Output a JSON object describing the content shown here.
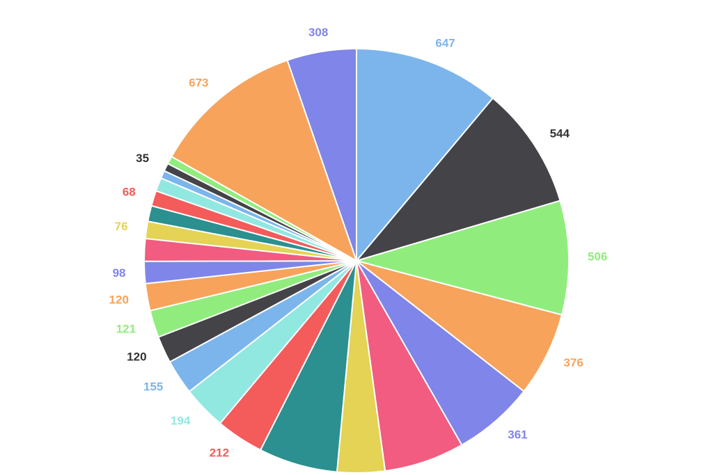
{
  "chart_data": {
    "type": "pie",
    "values": [
      647,
      544,
      506,
      376,
      361,
      356,
      211,
      350,
      212,
      194,
      155,
      120,
      121,
      120,
      98,
      100,
      76,
      70,
      68,
      60,
      35,
      35,
      35,
      673,
      308
    ],
    "value_labels": [
      "647",
      "544",
      "506",
      "376",
      "361",
      null,
      null,
      null,
      "212",
      "194",
      "155",
      "120",
      "121",
      "120",
      "98",
      null,
      "76",
      null,
      "68",
      null,
      null,
      "35",
      null,
      "673",
      "308"
    ],
    "colors": [
      "#7cb5ec",
      "#434348",
      "#90ed7d",
      "#f7a35c",
      "#8085e9",
      "#f15c80",
      "#e4d354",
      "#2b908f",
      "#f45b5b",
      "#91e8e1",
      "#7cb5ec",
      "#434348",
      "#90ed7d",
      "#f7a35c",
      "#8085e9",
      "#f15c80",
      "#e4d354",
      "#2b908f",
      "#f45b5b",
      "#91e8e1",
      "#7cb5ec",
      "#434348",
      "#90ed7d",
      "#f7a35c",
      "#8085e9"
    ]
  }
}
